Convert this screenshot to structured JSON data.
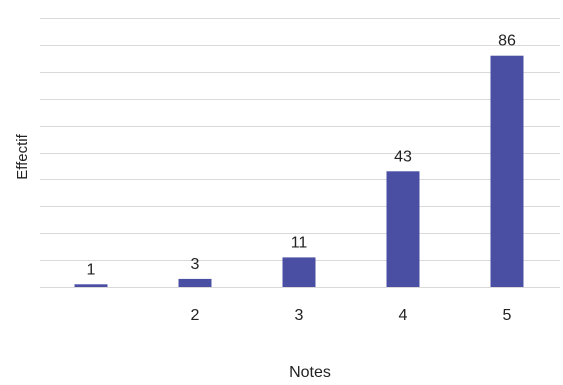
{
  "chart_data": {
    "type": "bar",
    "title": "",
    "xlabel": "Notes",
    "ylabel": "Effectif",
    "categories": [
      "",
      "2",
      "3",
      "4",
      "5"
    ],
    "values": [
      1,
      3,
      11,
      43,
      86
    ],
    "data_labels": [
      "1",
      "3",
      "11",
      "43",
      "86"
    ],
    "ylim": [
      0,
      100
    ],
    "gridline_step": 10,
    "grid": true,
    "legend": "none",
    "bar_color": "#4a4fa3",
    "grid_color": "#d9d9d9"
  }
}
